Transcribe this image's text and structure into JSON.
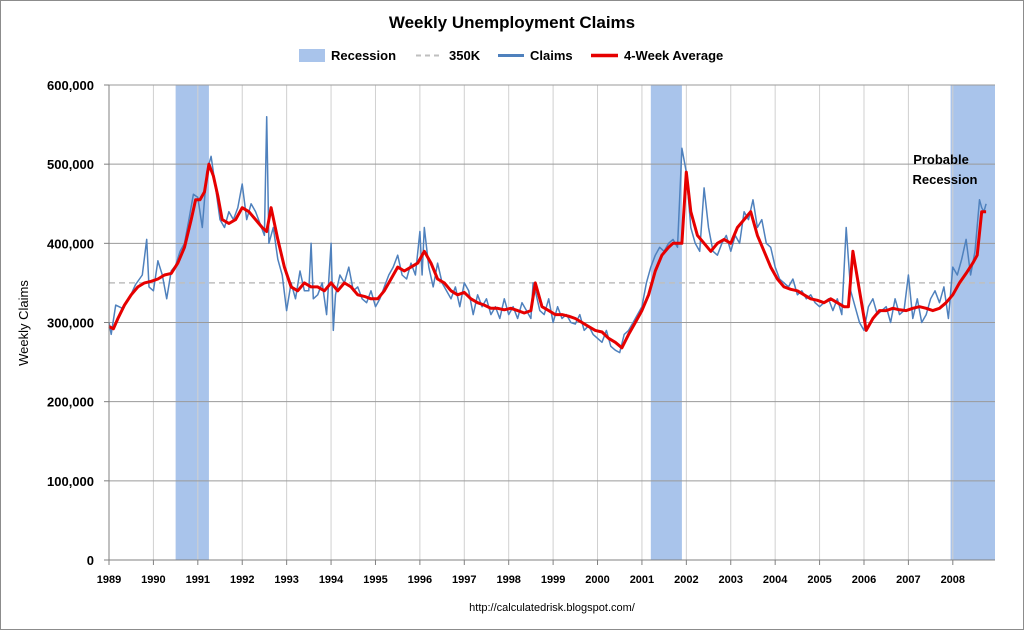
{
  "chart_data": {
    "type": "line",
    "title": "Weekly Unemployment Claims",
    "xlabel": "",
    "ylabel": "Weekly Claims",
    "xlim": [
      1989.0,
      2008.95
    ],
    "ylim": [
      0,
      600000
    ],
    "y_ticks": [
      0,
      100000,
      200000,
      300000,
      400000,
      500000,
      600000
    ],
    "y_tick_labels": [
      "0",
      "100,000",
      "200,000",
      "300,000",
      "400,000",
      "500,000",
      "600,000"
    ],
    "x_ticks": [
      1989,
      1990,
      1991,
      1992,
      1993,
      1994,
      1995,
      1996,
      1997,
      1998,
      1999,
      2000,
      2001,
      2002,
      2003,
      2004,
      2005,
      2006,
      2007,
      2008
    ],
    "x_tick_labels": [
      "1989",
      "1990",
      "1991",
      "1992",
      "1993",
      "1994",
      "1995",
      "1996",
      "1997",
      "1998",
      "1999",
      "2000",
      "2001",
      "2002",
      "2003",
      "2004",
      "2005",
      "2006",
      "2007",
      "2008"
    ],
    "grid": "vertical and horizontal",
    "legend": [
      "Recession",
      "350K",
      "Claims",
      "4-Week Average"
    ],
    "legend_placement": "top-center",
    "colors": {
      "recession": "#a9c4eb",
      "reference": "#bfbfbf",
      "claims": "#4f81bd",
      "average": "#e60000"
    },
    "recessions": [
      {
        "start": 1990.5,
        "end": 1991.25
      },
      {
        "start": 2001.2,
        "end": 2001.9
      },
      {
        "start": 2007.95,
        "end": 2008.95
      }
    ],
    "reference_line": {
      "name": "350K",
      "value": 350000
    },
    "series": [
      {
        "name": "Claims",
        "x": [
          1989.0,
          1989.05,
          1989.15,
          1989.3,
          1989.45,
          1989.6,
          1989.75,
          1989.85,
          1989.9,
          1990.0,
          1990.1,
          1990.2,
          1990.3,
          1990.4,
          1990.5,
          1990.6,
          1990.7,
          1990.8,
          1990.9,
          1991.0,
          1991.1,
          1991.2,
          1991.3,
          1991.4,
          1991.5,
          1991.6,
          1991.7,
          1991.8,
          1991.9,
          1992.0,
          1992.1,
          1992.2,
          1992.3,
          1992.4,
          1992.5,
          1992.55,
          1992.6,
          1992.7,
          1992.8,
          1992.9,
          1993.0,
          1993.1,
          1993.2,
          1993.3,
          1993.4,
          1993.5,
          1993.55,
          1993.6,
          1993.7,
          1993.8,
          1993.9,
          1994.0,
          1994.05,
          1994.1,
          1994.2,
          1994.3,
          1994.4,
          1994.5,
          1994.6,
          1994.7,
          1994.8,
          1994.9,
          1995.0,
          1995.1,
          1995.2,
          1995.3,
          1995.4,
          1995.5,
          1995.6,
          1995.7,
          1995.8,
          1995.9,
          1996.0,
          1996.05,
          1996.1,
          1996.2,
          1996.3,
          1996.4,
          1996.5,
          1996.6,
          1996.7,
          1996.8,
          1996.9,
          1997.0,
          1997.1,
          1997.2,
          1997.3,
          1997.4,
          1997.5,
          1997.6,
          1997.7,
          1997.8,
          1997.9,
          1998.0,
          1998.1,
          1998.2,
          1998.3,
          1998.4,
          1998.5,
          1998.55,
          1998.6,
          1998.7,
          1998.8,
          1998.9,
          1999.0,
          1999.1,
          1999.2,
          1999.3,
          1999.4,
          1999.5,
          1999.6,
          1999.7,
          1999.8,
          1999.9,
          2000.0,
          2000.1,
          2000.2,
          2000.3,
          2000.4,
          2000.5,
          2000.6,
          2000.7,
          2000.8,
          2000.9,
          2001.0,
          2001.1,
          2001.2,
          2001.3,
          2001.4,
          2001.5,
          2001.6,
          2001.7,
          2001.75,
          2001.8,
          2001.9,
          2002.0,
          2002.1,
          2002.2,
          2002.3,
          2002.4,
          2002.5,
          2002.6,
          2002.7,
          2002.8,
          2002.9,
          2003.0,
          2003.1,
          2003.2,
          2003.3,
          2003.4,
          2003.5,
          2003.6,
          2003.7,
          2003.8,
          2003.9,
          2004.0,
          2004.1,
          2004.2,
          2004.3,
          2004.4,
          2004.5,
          2004.6,
          2004.7,
          2004.8,
          2004.9,
          2005.0,
          2005.1,
          2005.2,
          2005.3,
          2005.4,
          2005.5,
          2005.6,
          2005.65,
          2005.7,
          2005.8,
          2005.9,
          2006.0,
          2006.1,
          2006.2,
          2006.3,
          2006.4,
          2006.5,
          2006.6,
          2006.7,
          2006.8,
          2006.9,
          2007.0,
          2007.1,
          2007.2,
          2007.3,
          2007.4,
          2007.5,
          2007.6,
          2007.7,
          2007.8,
          2007.9,
          2008.0,
          2008.1,
          2008.2,
          2008.3,
          2008.4,
          2008.5,
          2008.6,
          2008.65,
          2008.7,
          2008.75
        ],
        "values": [
          300000,
          285000,
          322000,
          318000,
          330000,
          348000,
          360000,
          405000,
          345000,
          340000,
          378000,
          360000,
          330000,
          365000,
          372000,
          390000,
          400000,
          430000,
          462000,
          458000,
          420000,
          490000,
          510000,
          470000,
          430000,
          420000,
          440000,
          430000,
          445000,
          475000,
          430000,
          450000,
          440000,
          425000,
          410000,
          560000,
          400000,
          420000,
          380000,
          360000,
          315000,
          350000,
          330000,
          365000,
          340000,
          340000,
          400000,
          330000,
          335000,
          350000,
          310000,
          400000,
          290000,
          335000,
          360000,
          350000,
          370000,
          340000,
          345000,
          330000,
          325000,
          340000,
          320000,
          330000,
          345000,
          360000,
          370000,
          385000,
          360000,
          355000,
          375000,
          360000,
          415000,
          360000,
          420000,
          370000,
          345000,
          375000,
          350000,
          340000,
          330000,
          345000,
          320000,
          350000,
          340000,
          310000,
          335000,
          320000,
          330000,
          310000,
          320000,
          305000,
          330000,
          310000,
          320000,
          305000,
          325000,
          315000,
          305000,
          350000,
          340000,
          315000,
          310000,
          330000,
          300000,
          320000,
          305000,
          310000,
          300000,
          298000,
          310000,
          290000,
          296000,
          285000,
          280000,
          275000,
          290000,
          270000,
          265000,
          262000,
          285000,
          290000,
          300000,
          310000,
          320000,
          350000,
          370000,
          385000,
          395000,
          390000,
          400000,
          405000,
          400000,
          395000,
          520000,
          490000,
          420000,
          400000,
          390000,
          470000,
          420000,
          390000,
          385000,
          400000,
          410000,
          390000,
          410000,
          400000,
          440000,
          430000,
          455000,
          420000,
          430000,
          400000,
          395000,
          370000,
          355000,
          350000,
          345000,
          355000,
          335000,
          340000,
          330000,
          335000,
          325000,
          320000,
          325000,
          330000,
          315000,
          330000,
          310000,
          420000,
          380000,
          340000,
          320000,
          300000,
          290000,
          320000,
          330000,
          310000,
          315000,
          320000,
          300000,
          330000,
          310000,
          315000,
          360000,
          305000,
          330000,
          300000,
          310000,
          330000,
          340000,
          325000,
          345000,
          305000,
          370000,
          360000,
          380000,
          405000,
          360000,
          390000,
          455000,
          445000,
          440000,
          450000
        ]
      },
      {
        "name": "4-Week Average",
        "x": [
          1989.0,
          1989.1,
          1989.2,
          1989.35,
          1989.5,
          1989.65,
          1989.8,
          1989.95,
          1990.1,
          1990.25,
          1990.4,
          1990.55,
          1990.7,
          1990.85,
          1990.95,
          1991.05,
          1991.15,
          1991.25,
          1991.35,
          1991.45,
          1991.55,
          1991.7,
          1991.85,
          1992.0,
          1992.15,
          1992.3,
          1992.45,
          1992.55,
          1992.65,
          1992.8,
          1992.95,
          1993.1,
          1993.25,
          1993.4,
          1993.55,
          1993.7,
          1993.85,
          1994.0,
          1994.15,
          1994.3,
          1994.45,
          1994.6,
          1994.75,
          1994.9,
          1995.05,
          1995.2,
          1995.35,
          1995.5,
          1995.65,
          1995.8,
          1995.95,
          1996.1,
          1996.25,
          1996.4,
          1996.55,
          1996.7,
          1996.85,
          1997.0,
          1997.15,
          1997.3,
          1997.45,
          1997.6,
          1997.75,
          1997.9,
          1998.05,
          1998.2,
          1998.35,
          1998.5,
          1998.6,
          1998.75,
          1998.9,
          1999.05,
          1999.2,
          1999.35,
          1999.5,
          1999.65,
          1999.8,
          1999.95,
          2000.1,
          2000.25,
          2000.4,
          2000.55,
          2000.7,
          2000.85,
          2001.0,
          2001.15,
          2001.3,
          2001.45,
          2001.6,
          2001.7,
          2001.8,
          2001.9,
          2002.0,
          2002.1,
          2002.25,
          2002.4,
          2002.55,
          2002.7,
          2002.85,
          2003.0,
          2003.15,
          2003.3,
          2003.45,
          2003.6,
          2003.75,
          2003.9,
          2004.05,
          2004.2,
          2004.35,
          2004.5,
          2004.65,
          2004.8,
          2004.95,
          2005.1,
          2005.25,
          2005.4,
          2005.55,
          2005.65,
          2005.75,
          2005.9,
          2006.05,
          2006.2,
          2006.35,
          2006.5,
          2006.65,
          2006.8,
          2006.95,
          2007.1,
          2007.25,
          2007.4,
          2007.55,
          2007.7,
          2007.85,
          2008.0,
          2008.15,
          2008.3,
          2008.45,
          2008.55,
          2008.65,
          2008.75
        ],
        "values": [
          295000,
          292000,
          305000,
          322000,
          335000,
          345000,
          350000,
          352000,
          355000,
          360000,
          362000,
          375000,
          395000,
          430000,
          455000,
          455000,
          465000,
          500000,
          485000,
          460000,
          430000,
          425000,
          430000,
          445000,
          440000,
          430000,
          420000,
          415000,
          445000,
          405000,
          370000,
          345000,
          340000,
          350000,
          345000,
          345000,
          340000,
          350000,
          340000,
          350000,
          345000,
          335000,
          333000,
          330000,
          330000,
          340000,
          355000,
          370000,
          365000,
          370000,
          375000,
          390000,
          375000,
          355000,
          350000,
          340000,
          335000,
          338000,
          330000,
          325000,
          322000,
          318000,
          318000,
          316000,
          318000,
          315000,
          312000,
          315000,
          350000,
          320000,
          315000,
          310000,
          310000,
          308000,
          305000,
          300000,
          295000,
          290000,
          288000,
          280000,
          275000,
          268000,
          285000,
          300000,
          315000,
          335000,
          365000,
          385000,
          395000,
          400000,
          400000,
          400000,
          490000,
          440000,
          410000,
          400000,
          390000,
          400000,
          405000,
          400000,
          420000,
          430000,
          440000,
          410000,
          390000,
          370000,
          355000,
          345000,
          342000,
          340000,
          335000,
          330000,
          328000,
          325000,
          330000,
          325000,
          320000,
          320000,
          390000,
          340000,
          290000,
          305000,
          315000,
          315000,
          318000,
          316000,
          315000,
          318000,
          320000,
          318000,
          315000,
          318000,
          325000,
          335000,
          350000,
          362000,
          375000,
          385000,
          440000,
          440000
        ]
      }
    ],
    "annotations": [
      "Probable",
      "Recession"
    ]
  },
  "footer": {
    "source": "http://calculatedrisk.blogspot.com/"
  }
}
